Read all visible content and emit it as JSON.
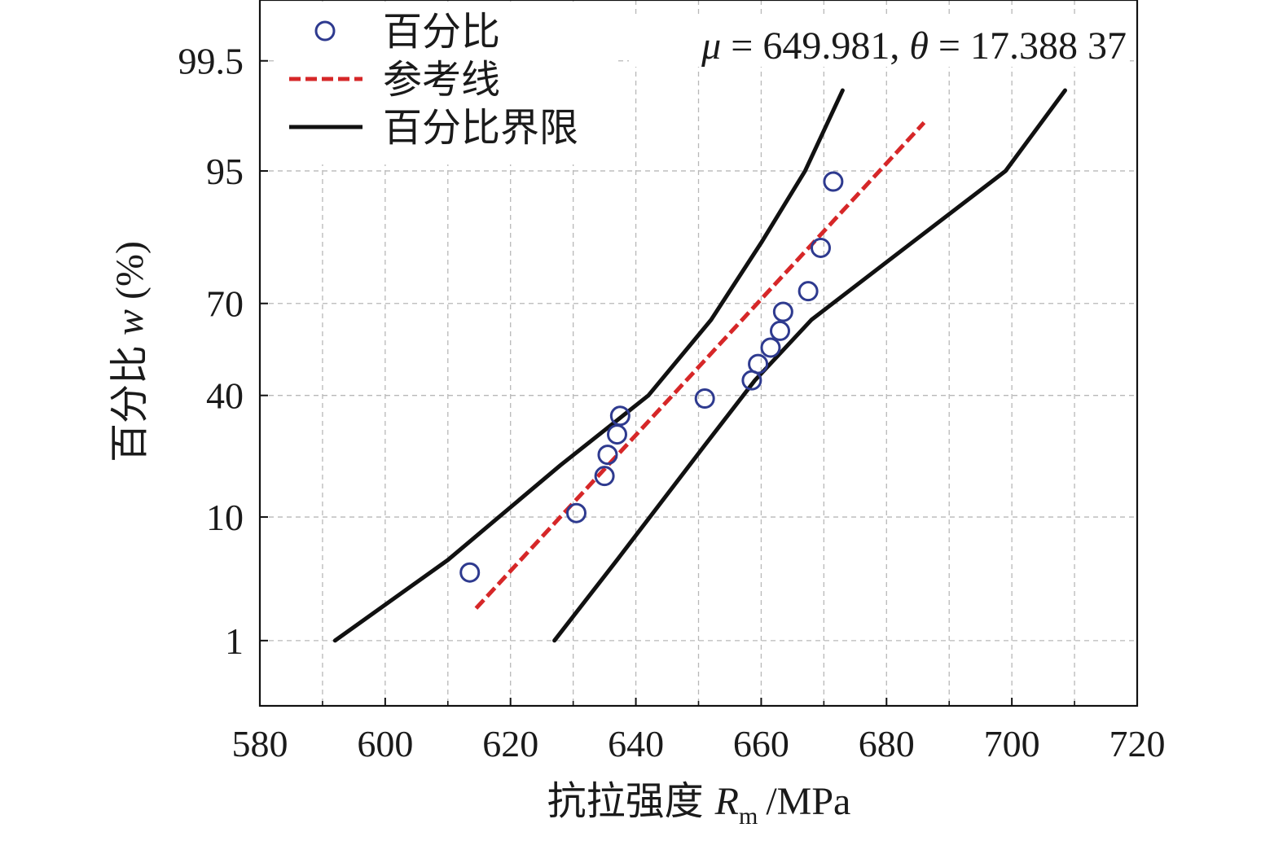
{
  "chart_data": {
    "type": "scatter",
    "title": "",
    "xlabel": "抗拉强度",
    "xlabel_symbol": "R",
    "xlabel_subscript": "m",
    "xlabel_unit": "/MPa",
    "ylabel": "百分比",
    "ylabel_symbol": "w",
    "ylabel_unit": "(%)",
    "xlim": [
      580,
      720
    ],
    "xticks": [
      "580",
      "600",
      "620",
      "640",
      "660",
      "680",
      "700",
      "720"
    ],
    "yticks": [
      {
        "label": "1",
        "prob": 1
      },
      {
        "label": "10",
        "prob": 10
      },
      {
        "label": "40",
        "prob": 40
      },
      {
        "label": "70",
        "prob": 70
      },
      {
        "label": "95",
        "prob": 95
      },
      {
        "label": "99.5",
        "prob": 99.5
      }
    ],
    "y_scale": "probability (probit)",
    "ylim_probability": [
      0.2,
      99.9
    ],
    "grid": true,
    "legend": {
      "position": "top-left",
      "entries": [
        "百分比",
        "参考线",
        "百分比界限"
      ]
    },
    "annotation": {
      "mu_symbol": "μ",
      "mu_text": " = 649.981, ",
      "theta_symbol": "θ",
      "theta_text": " = 17.388 37"
    },
    "series": [
      {
        "name": "百分比",
        "kind": "points",
        "color": "#2e3a8f",
        "points": [
          {
            "x": 613.5,
            "y": 4.0
          },
          {
            "x": 630.5,
            "y": 10.6
          },
          {
            "x": 635.0,
            "y": 17.5
          },
          {
            "x": 635.5,
            "y": 22.5
          },
          {
            "x": 637.0,
            "y": 28.0
          },
          {
            "x": 637.5,
            "y": 33.5
          },
          {
            "x": 651.0,
            "y": 39.0
          },
          {
            "x": 658.5,
            "y": 45.0
          },
          {
            "x": 659.5,
            "y": 50.5
          },
          {
            "x": 661.5,
            "y": 56.0
          },
          {
            "x": 663.0,
            "y": 61.5
          },
          {
            "x": 663.5,
            "y": 67.5
          },
          {
            "x": 667.5,
            "y": 73.5
          },
          {
            "x": 669.5,
            "y": 84.0
          },
          {
            "x": 671.5,
            "y": 94.0
          }
        ]
      },
      {
        "name": "参考线",
        "kind": "dashed-line",
        "color": "#d62728",
        "points": [
          {
            "x": 614.5,
            "y": 2.0
          },
          {
            "x": 686.0,
            "y": 98.0
          }
        ]
      },
      {
        "name": "百分比界限",
        "kind": "line",
        "color": "#111111",
        "segments": [
          [
            {
              "x": 592.0,
              "y": 1.0
            },
            {
              "x": 610.0,
              "y": 5.0
            },
            {
              "x": 628.0,
              "y": 20.0
            },
            {
              "x": 642.0,
              "y": 40.0
            },
            {
              "x": 652.0,
              "y": 65.0
            },
            {
              "x": 660.0,
              "y": 85.0
            },
            {
              "x": 667.0,
              "y": 95.0
            },
            {
              "x": 673.0,
              "y": 99.0
            }
          ],
          [
            {
              "x": 627.0,
              "y": 1.0
            },
            {
              "x": 637.0,
              "y": 5.0
            },
            {
              "x": 651.0,
              "y": 25.0
            },
            {
              "x": 659.0,
              "y": 45.0
            },
            {
              "x": 668.0,
              "y": 65.0
            },
            {
              "x": 684.0,
              "y": 85.0
            },
            {
              "x": 699.0,
              "y": 95.0
            },
            {
              "x": 708.5,
              "y": 99.0
            }
          ]
        ]
      }
    ]
  }
}
